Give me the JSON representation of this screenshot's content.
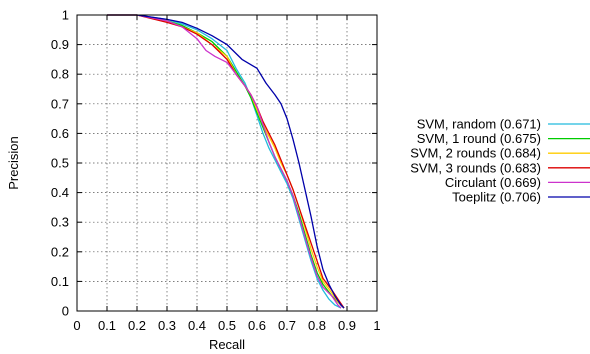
{
  "chart_data": {
    "type": "line",
    "title": "",
    "xlabel": "Recall",
    "ylabel": "Precision",
    "xlim": [
      0,
      1
    ],
    "ylim": [
      0,
      1
    ],
    "xticks": [
      "0",
      "0.1",
      "0.2",
      "0.3",
      "0.4",
      "0.5",
      "0.6",
      "0.7",
      "0.8",
      "0.9",
      "1"
    ],
    "yticks": [
      "0",
      "0.1",
      "0.2",
      "0.3",
      "0.4",
      "0.5",
      "0.6",
      "0.7",
      "0.8",
      "0.9",
      "1"
    ],
    "grid": true,
    "legend_position": "right",
    "series": [
      {
        "name": "SVM, random (0.671)",
        "color": "#22bbdd",
        "points": [
          [
            0.1,
            1.0
          ],
          [
            0.2,
            1.0
          ],
          [
            0.3,
            0.985
          ],
          [
            0.35,
            0.97
          ],
          [
            0.4,
            0.95
          ],
          [
            0.45,
            0.92
          ],
          [
            0.5,
            0.88
          ],
          [
            0.53,
            0.82
          ],
          [
            0.56,
            0.77
          ],
          [
            0.58,
            0.72
          ],
          [
            0.6,
            0.66
          ],
          [
            0.62,
            0.6
          ],
          [
            0.64,
            0.55
          ],
          [
            0.66,
            0.51
          ],
          [
            0.68,
            0.47
          ],
          [
            0.7,
            0.43
          ],
          [
            0.72,
            0.38
          ],
          [
            0.74,
            0.31
          ],
          [
            0.76,
            0.24
          ],
          [
            0.78,
            0.17
          ],
          [
            0.8,
            0.11
          ],
          [
            0.82,
            0.07
          ],
          [
            0.84,
            0.04
          ],
          [
            0.86,
            0.02
          ],
          [
            0.88,
            0.01
          ]
        ]
      },
      {
        "name": "SVM, 1 round (0.675)",
        "color": "#00cc00",
        "points": [
          [
            0.1,
            1.0
          ],
          [
            0.2,
            1.0
          ],
          [
            0.3,
            0.98
          ],
          [
            0.35,
            0.965
          ],
          [
            0.4,
            0.94
          ],
          [
            0.45,
            0.91
          ],
          [
            0.5,
            0.86
          ],
          [
            0.53,
            0.81
          ],
          [
            0.56,
            0.76
          ],
          [
            0.58,
            0.72
          ],
          [
            0.6,
            0.67
          ],
          [
            0.62,
            0.62
          ],
          [
            0.64,
            0.57
          ],
          [
            0.66,
            0.52
          ],
          [
            0.68,
            0.48
          ],
          [
            0.7,
            0.44
          ],
          [
            0.72,
            0.39
          ],
          [
            0.74,
            0.33
          ],
          [
            0.76,
            0.26
          ],
          [
            0.78,
            0.19
          ],
          [
            0.8,
            0.13
          ],
          [
            0.82,
            0.09
          ],
          [
            0.85,
            0.05
          ],
          [
            0.87,
            0.03
          ],
          [
            0.89,
            0.01
          ]
        ]
      },
      {
        "name": "SVM, 2 rounds (0.684)",
        "color": "#ffcc00",
        "points": [
          [
            0.1,
            1.0
          ],
          [
            0.2,
            1.0
          ],
          [
            0.3,
            0.98
          ],
          [
            0.35,
            0.96
          ],
          [
            0.4,
            0.94
          ],
          [
            0.45,
            0.9
          ],
          [
            0.5,
            0.86
          ],
          [
            0.53,
            0.8
          ],
          [
            0.56,
            0.76
          ],
          [
            0.58,
            0.73
          ],
          [
            0.6,
            0.68
          ],
          [
            0.62,
            0.63
          ],
          [
            0.64,
            0.59
          ],
          [
            0.66,
            0.55
          ],
          [
            0.68,
            0.5
          ],
          [
            0.7,
            0.46
          ],
          [
            0.72,
            0.41
          ],
          [
            0.74,
            0.35
          ],
          [
            0.76,
            0.28
          ],
          [
            0.78,
            0.21
          ],
          [
            0.8,
            0.15
          ],
          [
            0.82,
            0.1
          ],
          [
            0.85,
            0.06
          ],
          [
            0.87,
            0.03
          ],
          [
            0.89,
            0.01
          ]
        ]
      },
      {
        "name": "SVM, 3 rounds (0.683)",
        "color": "#dd0000",
        "points": [
          [
            0.1,
            1.0
          ],
          [
            0.2,
            1.0
          ],
          [
            0.3,
            0.975
          ],
          [
            0.35,
            0.96
          ],
          [
            0.4,
            0.935
          ],
          [
            0.45,
            0.9
          ],
          [
            0.5,
            0.85
          ],
          [
            0.53,
            0.8
          ],
          [
            0.56,
            0.76
          ],
          [
            0.58,
            0.73
          ],
          [
            0.6,
            0.69
          ],
          [
            0.62,
            0.64
          ],
          [
            0.64,
            0.6
          ],
          [
            0.66,
            0.56
          ],
          [
            0.68,
            0.51
          ],
          [
            0.7,
            0.46
          ],
          [
            0.72,
            0.41
          ],
          [
            0.74,
            0.35
          ],
          [
            0.76,
            0.29
          ],
          [
            0.78,
            0.23
          ],
          [
            0.8,
            0.17
          ],
          [
            0.82,
            0.11
          ],
          [
            0.85,
            0.07
          ],
          [
            0.87,
            0.04
          ],
          [
            0.89,
            0.01
          ]
        ]
      },
      {
        "name": "Circulant (0.669)",
        "color": "#cc33cc",
        "points": [
          [
            0.1,
            1.0
          ],
          [
            0.2,
            1.0
          ],
          [
            0.3,
            0.98
          ],
          [
            0.35,
            0.96
          ],
          [
            0.4,
            0.92
          ],
          [
            0.43,
            0.88
          ],
          [
            0.46,
            0.86
          ],
          [
            0.5,
            0.84
          ],
          [
            0.53,
            0.8
          ],
          [
            0.56,
            0.76
          ],
          [
            0.58,
            0.73
          ],
          [
            0.6,
            0.69
          ],
          [
            0.62,
            0.63
          ],
          [
            0.64,
            0.57
          ],
          [
            0.66,
            0.52
          ],
          [
            0.68,
            0.48
          ],
          [
            0.7,
            0.44
          ],
          [
            0.72,
            0.39
          ],
          [
            0.74,
            0.32
          ],
          [
            0.76,
            0.25
          ],
          [
            0.78,
            0.18
          ],
          [
            0.8,
            0.12
          ],
          [
            0.82,
            0.08
          ],
          [
            0.85,
            0.05
          ],
          [
            0.87,
            0.02
          ],
          [
            0.88,
            0.01
          ]
        ]
      },
      {
        "name": "Toeplitz (0.706)",
        "color": "#0000aa",
        "points": [
          [
            0.1,
            1.0
          ],
          [
            0.2,
            1.0
          ],
          [
            0.3,
            0.985
          ],
          [
            0.35,
            0.975
          ],
          [
            0.4,
            0.955
          ],
          [
            0.45,
            0.93
          ],
          [
            0.5,
            0.9
          ],
          [
            0.55,
            0.85
          ],
          [
            0.6,
            0.82
          ],
          [
            0.63,
            0.77
          ],
          [
            0.66,
            0.73
          ],
          [
            0.68,
            0.7
          ],
          [
            0.7,
            0.65
          ],
          [
            0.72,
            0.58
          ],
          [
            0.74,
            0.5
          ],
          [
            0.76,
            0.41
          ],
          [
            0.78,
            0.32
          ],
          [
            0.8,
            0.22
          ],
          [
            0.82,
            0.14
          ],
          [
            0.84,
            0.09
          ],
          [
            0.86,
            0.05
          ],
          [
            0.88,
            0.02
          ],
          [
            0.89,
            0.01
          ]
        ]
      }
    ]
  }
}
